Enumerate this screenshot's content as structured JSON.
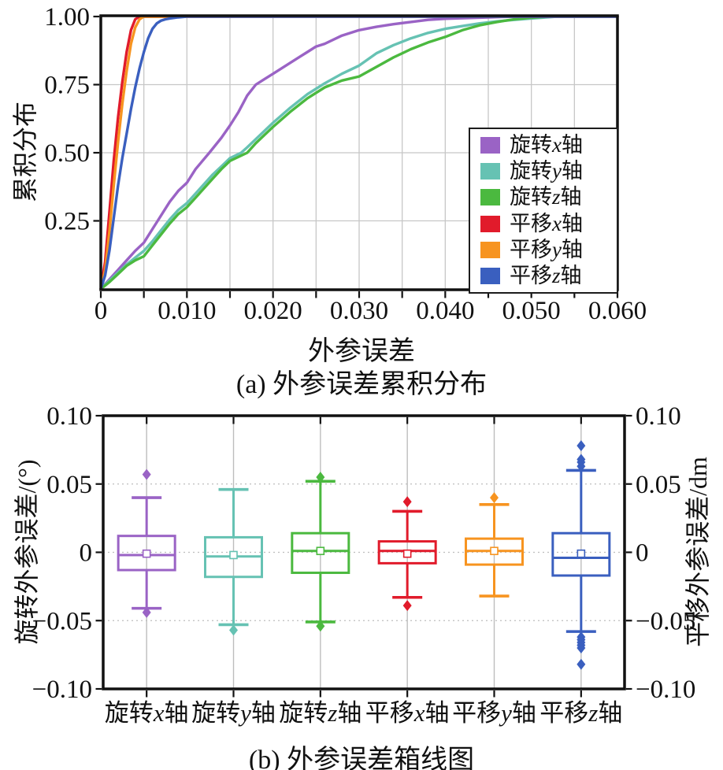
{
  "figure": {
    "background": "#ffffff"
  },
  "panel_a": {
    "ylabel": "累积分布",
    "xlabel": "外参误差",
    "caption": "(a) 外参误差累积分布",
    "x_tick_labels": [
      "0",
      "0.010",
      "0.020",
      "0.030",
      "0.040",
      "0.050",
      "0.060"
    ],
    "y_tick_labels": [
      "0.25",
      "0.50",
      "0.75",
      "1.00"
    ],
    "legend": [
      {
        "prefix": "旋转",
        "axis": "x",
        "suffix": "轴",
        "color": "#9a63c5"
      },
      {
        "prefix": "旋转",
        "axis": "y",
        "suffix": "轴",
        "color": "#66c2b3"
      },
      {
        "prefix": "旋转",
        "axis": "z",
        "suffix": "轴",
        "color": "#4bb93f"
      },
      {
        "prefix": "平移",
        "axis": "x",
        "suffix": "轴",
        "color": "#e11b2b"
      },
      {
        "prefix": "平移",
        "axis": "y",
        "suffix": "轴",
        "color": "#f79420"
      },
      {
        "prefix": "平移",
        "axis": "z",
        "suffix": "轴",
        "color": "#3a5fbf"
      }
    ]
  },
  "panel_b": {
    "ylabel_left": "旋转外参误差/(°)",
    "ylabel_right": "平移外参误差/dm",
    "caption": "(b) 外参误差箱线图",
    "y_tick_labels": [
      "0.10",
      "0.05",
      "0",
      "−0.05",
      "−0.10"
    ]
  },
  "chart_data": [
    {
      "type": "line",
      "title": "外参误差累积分布",
      "xlabel": "外参误差",
      "ylabel": "累积分布",
      "xlim": [
        0,
        0.06
      ],
      "ylim": [
        0,
        1.0
      ],
      "grid": true,
      "x_major_ticks": [
        0,
        0.01,
        0.02,
        0.03,
        0.04,
        0.05,
        0.06
      ],
      "x_minor_step": 0.005,
      "y_ticks": [
        0.25,
        0.5,
        0.75,
        1.0
      ],
      "legend_position": "right-middle",
      "series": [
        {
          "name": "旋转x轴",
          "color": "#9a63c5",
          "points": [
            [
              0,
              0
            ],
            [
              0.001,
              0.035
            ],
            [
              0.002,
              0.07
            ],
            [
              0.003,
              0.105
            ],
            [
              0.004,
              0.14
            ],
            [
              0.005,
              0.17
            ],
            [
              0.006,
              0.22
            ],
            [
              0.0066,
              0.25
            ],
            [
              0.008,
              0.32
            ],
            [
              0.009,
              0.36
            ],
            [
              0.01,
              0.39
            ],
            [
              0.011,
              0.44
            ],
            [
              0.0126,
              0.5
            ],
            [
              0.014,
              0.555
            ],
            [
              0.015,
              0.6
            ],
            [
              0.016,
              0.65
            ],
            [
              0.017,
              0.71
            ],
            [
              0.018,
              0.75
            ],
            [
              0.019,
              0.77
            ],
            [
              0.02,
              0.79
            ],
            [
              0.022,
              0.83
            ],
            [
              0.024,
              0.87
            ],
            [
              0.025,
              0.89
            ],
            [
              0.026,
              0.9
            ],
            [
              0.028,
              0.93
            ],
            [
              0.03,
              0.95
            ],
            [
              0.032,
              0.962
            ],
            [
              0.034,
              0.972
            ],
            [
              0.036,
              0.98
            ],
            [
              0.038,
              0.988
            ],
            [
              0.04,
              0.992
            ],
            [
              0.044,
              0.996
            ],
            [
              0.048,
              1
            ],
            [
              0.06,
              1
            ]
          ]
        },
        {
          "name": "旋转y轴",
          "color": "#66c2b3",
          "points": [
            [
              0,
              0
            ],
            [
              0.001,
              0.03
            ],
            [
              0.002,
              0.06
            ],
            [
              0.003,
              0.09
            ],
            [
              0.004,
              0.115
            ],
            [
              0.005,
              0.14
            ],
            [
              0.006,
              0.175
            ],
            [
              0.007,
              0.215
            ],
            [
              0.008,
              0.255
            ],
            [
              0.009,
              0.29
            ],
            [
              0.01,
              0.315
            ],
            [
              0.011,
              0.35
            ],
            [
              0.012,
              0.385
            ],
            [
              0.013,
              0.42
            ],
            [
              0.014,
              0.45
            ],
            [
              0.015,
              0.48
            ],
            [
              0.0163,
              0.5
            ],
            [
              0.017,
              0.52
            ],
            [
              0.018,
              0.55
            ],
            [
              0.019,
              0.58
            ],
            [
              0.02,
              0.61
            ],
            [
              0.022,
              0.665
            ],
            [
              0.024,
              0.715
            ],
            [
              0.026,
              0.755
            ],
            [
              0.028,
              0.79
            ],
            [
              0.03,
              0.82
            ],
            [
              0.032,
              0.865
            ],
            [
              0.034,
              0.895
            ],
            [
              0.036,
              0.92
            ],
            [
              0.038,
              0.94
            ],
            [
              0.04,
              0.955
            ],
            [
              0.042,
              0.965
            ],
            [
              0.044,
              0.975
            ],
            [
              0.046,
              0.982
            ],
            [
              0.048,
              0.988
            ],
            [
              0.05,
              0.993
            ],
            [
              0.053,
              1
            ],
            [
              0.06,
              1
            ]
          ]
        },
        {
          "name": "旋转z轴",
          "color": "#4bb93f",
          "points": [
            [
              0,
              0
            ],
            [
              0.001,
              0.025
            ],
            [
              0.002,
              0.055
            ],
            [
              0.003,
              0.085
            ],
            [
              0.004,
              0.105
            ],
            [
              0.005,
              0.12
            ],
            [
              0.006,
              0.16
            ],
            [
              0.007,
              0.2
            ],
            [
              0.008,
              0.24
            ],
            [
              0.009,
              0.275
            ],
            [
              0.01,
              0.3
            ],
            [
              0.011,
              0.335
            ],
            [
              0.012,
              0.37
            ],
            [
              0.013,
              0.405
            ],
            [
              0.014,
              0.44
            ],
            [
              0.015,
              0.47
            ],
            [
              0.017,
              0.5
            ],
            [
              0.018,
              0.535
            ],
            [
              0.019,
              0.565
            ],
            [
              0.02,
              0.595
            ],
            [
              0.022,
              0.65
            ],
            [
              0.024,
              0.7
            ],
            [
              0.026,
              0.74
            ],
            [
              0.028,
              0.765
            ],
            [
              0.03,
              0.78
            ],
            [
              0.032,
              0.815
            ],
            [
              0.034,
              0.85
            ],
            [
              0.036,
              0.88
            ],
            [
              0.038,
              0.905
            ],
            [
              0.04,
              0.925
            ],
            [
              0.042,
              0.95
            ],
            [
              0.044,
              0.968
            ],
            [
              0.046,
              0.98
            ],
            [
              0.048,
              0.99
            ],
            [
              0.05,
              0.996
            ],
            [
              0.052,
              1
            ],
            [
              0.06,
              1
            ]
          ]
        },
        {
          "name": "平移x轴",
          "color": "#e11b2b",
          "points": [
            [
              0,
              0
            ],
            [
              0.0005,
              0.1
            ],
            [
              0.001,
              0.28
            ],
            [
              0.0015,
              0.47
            ],
            [
              0.002,
              0.63
            ],
            [
              0.0025,
              0.76
            ],
            [
              0.003,
              0.87
            ],
            [
              0.0035,
              0.95
            ],
            [
              0.004,
              0.99
            ],
            [
              0.0045,
              1
            ],
            [
              0.06,
              1
            ]
          ]
        },
        {
          "name": "平移y轴",
          "color": "#f79420",
          "points": [
            [
              0,
              0
            ],
            [
              0.0005,
              0.07
            ],
            [
              0.001,
              0.21
            ],
            [
              0.0015,
              0.38
            ],
            [
              0.002,
              0.54
            ],
            [
              0.0025,
              0.68
            ],
            [
              0.003,
              0.8
            ],
            [
              0.0035,
              0.9
            ],
            [
              0.004,
              0.96
            ],
            [
              0.0045,
              0.99
            ],
            [
              0.005,
              1
            ],
            [
              0.06,
              1
            ]
          ]
        },
        {
          "name": "平移z轴",
          "color": "#3a5fbf",
          "points": [
            [
              0,
              0
            ],
            [
              0.0005,
              0.05
            ],
            [
              0.001,
              0.14
            ],
            [
              0.0015,
              0.26
            ],
            [
              0.002,
              0.38
            ],
            [
              0.0025,
              0.48
            ],
            [
              0.003,
              0.57
            ],
            [
              0.0035,
              0.66
            ],
            [
              0.004,
              0.74
            ],
            [
              0.0045,
              0.81
            ],
            [
              0.005,
              0.87
            ],
            [
              0.0055,
              0.92
            ],
            [
              0.006,
              0.955
            ],
            [
              0.0065,
              0.975
            ],
            [
              0.007,
              0.985
            ],
            [
              0.0075,
              0.99
            ],
            [
              0.008,
              0.993
            ],
            [
              0.009,
              0.997
            ],
            [
              0.01,
              1
            ],
            [
              0.06,
              1
            ]
          ]
        }
      ]
    },
    {
      "type": "boxplot",
      "title": "外参误差箱线图",
      "ylabel_left": "旋转外参误差/(°)",
      "ylabel_right": "平移外参误差/dm",
      "ylim": [
        -0.1,
        0.1
      ],
      "y_ticks": [
        0.1,
        0.05,
        0,
        -0.05,
        -0.1
      ],
      "grid_dotted_at": [
        0.05,
        0,
        -0.05
      ],
      "categories": [
        "旋转x轴",
        "旋转y轴",
        "旋转z轴",
        "平移x轴",
        "平移y轴",
        "平移z轴"
      ],
      "category_parts": [
        {
          "prefix": "旋转",
          "axis": "x",
          "suffix": "轴"
        },
        {
          "prefix": "旋转",
          "axis": "y",
          "suffix": "轴"
        },
        {
          "prefix": "旋转",
          "axis": "z",
          "suffix": "轴"
        },
        {
          "prefix": "平移",
          "axis": "x",
          "suffix": "轴"
        },
        {
          "prefix": "平移",
          "axis": "y",
          "suffix": "轴"
        },
        {
          "prefix": "平移",
          "axis": "z",
          "suffix": "轴"
        }
      ],
      "boxes": [
        {
          "label": "旋转x轴",
          "color": "#9a63c5",
          "whisker_low": -0.041,
          "q1": -0.013,
          "median": -0.002,
          "mean": -0.001,
          "q3": 0.012,
          "whisker_high": 0.04,
          "outliers": [
            0.057,
            -0.044
          ]
        },
        {
          "label": "旋转y轴",
          "color": "#66c2b3",
          "whisker_low": -0.053,
          "q1": -0.018,
          "median": -0.003,
          "mean": -0.002,
          "q3": 0.011,
          "whisker_high": 0.046,
          "outliers": [
            -0.057
          ]
        },
        {
          "label": "旋转z轴",
          "color": "#4bb93f",
          "whisker_low": -0.051,
          "q1": -0.015,
          "median": 0.001,
          "mean": 0.001,
          "q3": 0.014,
          "whisker_high": 0.052,
          "outliers": [
            0.055,
            -0.054
          ]
        },
        {
          "label": "平移x轴",
          "color": "#e11b2b",
          "whisker_low": -0.033,
          "q1": -0.008,
          "median": 0.001,
          "mean": -0.001,
          "q3": 0.008,
          "whisker_high": 0.03,
          "outliers": [
            0.037,
            -0.039
          ]
        },
        {
          "label": "平移y轴",
          "color": "#f79420",
          "whisker_low": -0.032,
          "q1": -0.009,
          "median": 0.001,
          "mean": 0.001,
          "q3": 0.01,
          "whisker_high": 0.035,
          "outliers": [
            0.04
          ]
        },
        {
          "label": "平移z轴",
          "color": "#3a5fbf",
          "whisker_low": -0.058,
          "q1": -0.017,
          "median": -0.004,
          "mean": -0.001,
          "q3": 0.014,
          "whisker_high": 0.06,
          "outliers": [
            0.078,
            0.068,
            0.066,
            0.063,
            -0.062,
            -0.064,
            -0.066,
            -0.068,
            -0.07,
            -0.082
          ]
        }
      ]
    }
  ]
}
